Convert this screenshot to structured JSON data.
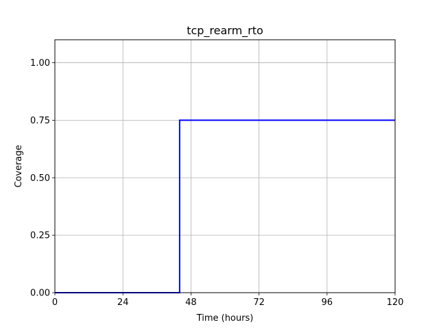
{
  "chart_data": {
    "type": "line",
    "title": "tcp_rearm_rto",
    "xlabel": "Time (hours)",
    "ylabel": "Coverage",
    "xlim": [
      0,
      120
    ],
    "ylim": [
      0,
      1.1
    ],
    "xticks": [
      0,
      24,
      48,
      72,
      96,
      120
    ],
    "xtick_labels": [
      "0",
      "24",
      "48",
      "72",
      "96",
      "120"
    ],
    "yticks": [
      0,
      0.25,
      0.5,
      0.75,
      1.0
    ],
    "ytick_labels": [
      "0.00",
      "0.25",
      "0.50",
      "0.75",
      "1.00"
    ],
    "grid": true,
    "series": [
      {
        "color": "#0000ff",
        "x": [
          0,
          44,
          44,
          120
        ],
        "y": [
          0,
          0,
          0.75,
          0.75
        ]
      }
    ]
  }
}
